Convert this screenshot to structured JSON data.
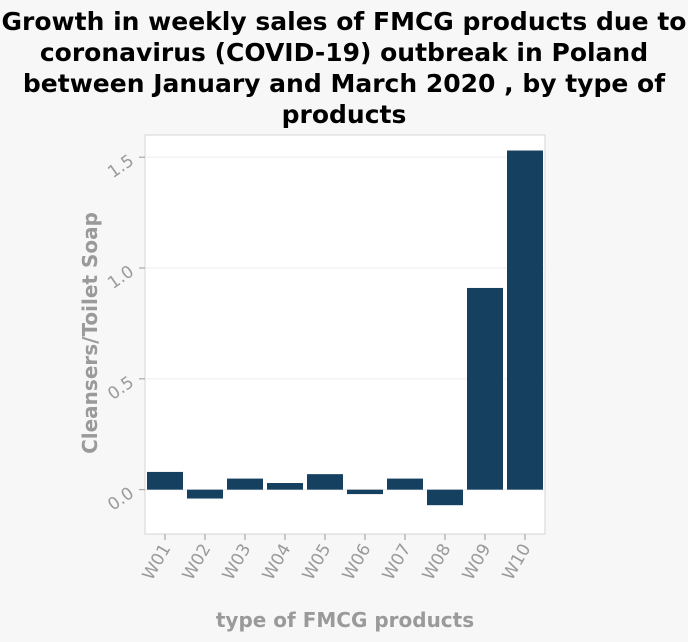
{
  "chart_data": {
    "type": "bar",
    "title": "Growth in weekly sales of FMCG products due to coronavirus (COVID-19) outbreak in Poland between January and March 2020 , by type of products",
    "xlabel": "type of FMCG products",
    "ylabel": "Cleansers/Toilet Soap",
    "categories": [
      "W01",
      "W02",
      "W03",
      "W04",
      "W05",
      "W06",
      "W07",
      "W08",
      "W09",
      "W10"
    ],
    "values": [
      0.08,
      -0.04,
      0.05,
      0.03,
      0.07,
      -0.02,
      0.05,
      -0.07,
      0.91,
      1.53
    ],
    "ylim": [
      -0.2,
      1.6
    ],
    "yticks": [
      0.0,
      0.5,
      1.0,
      1.5
    ],
    "ytick_labels": [
      "0.0",
      "0.5",
      "1.0",
      "1.5"
    ],
    "grid": true,
    "legend": "none",
    "bar_color": "#15405f"
  }
}
